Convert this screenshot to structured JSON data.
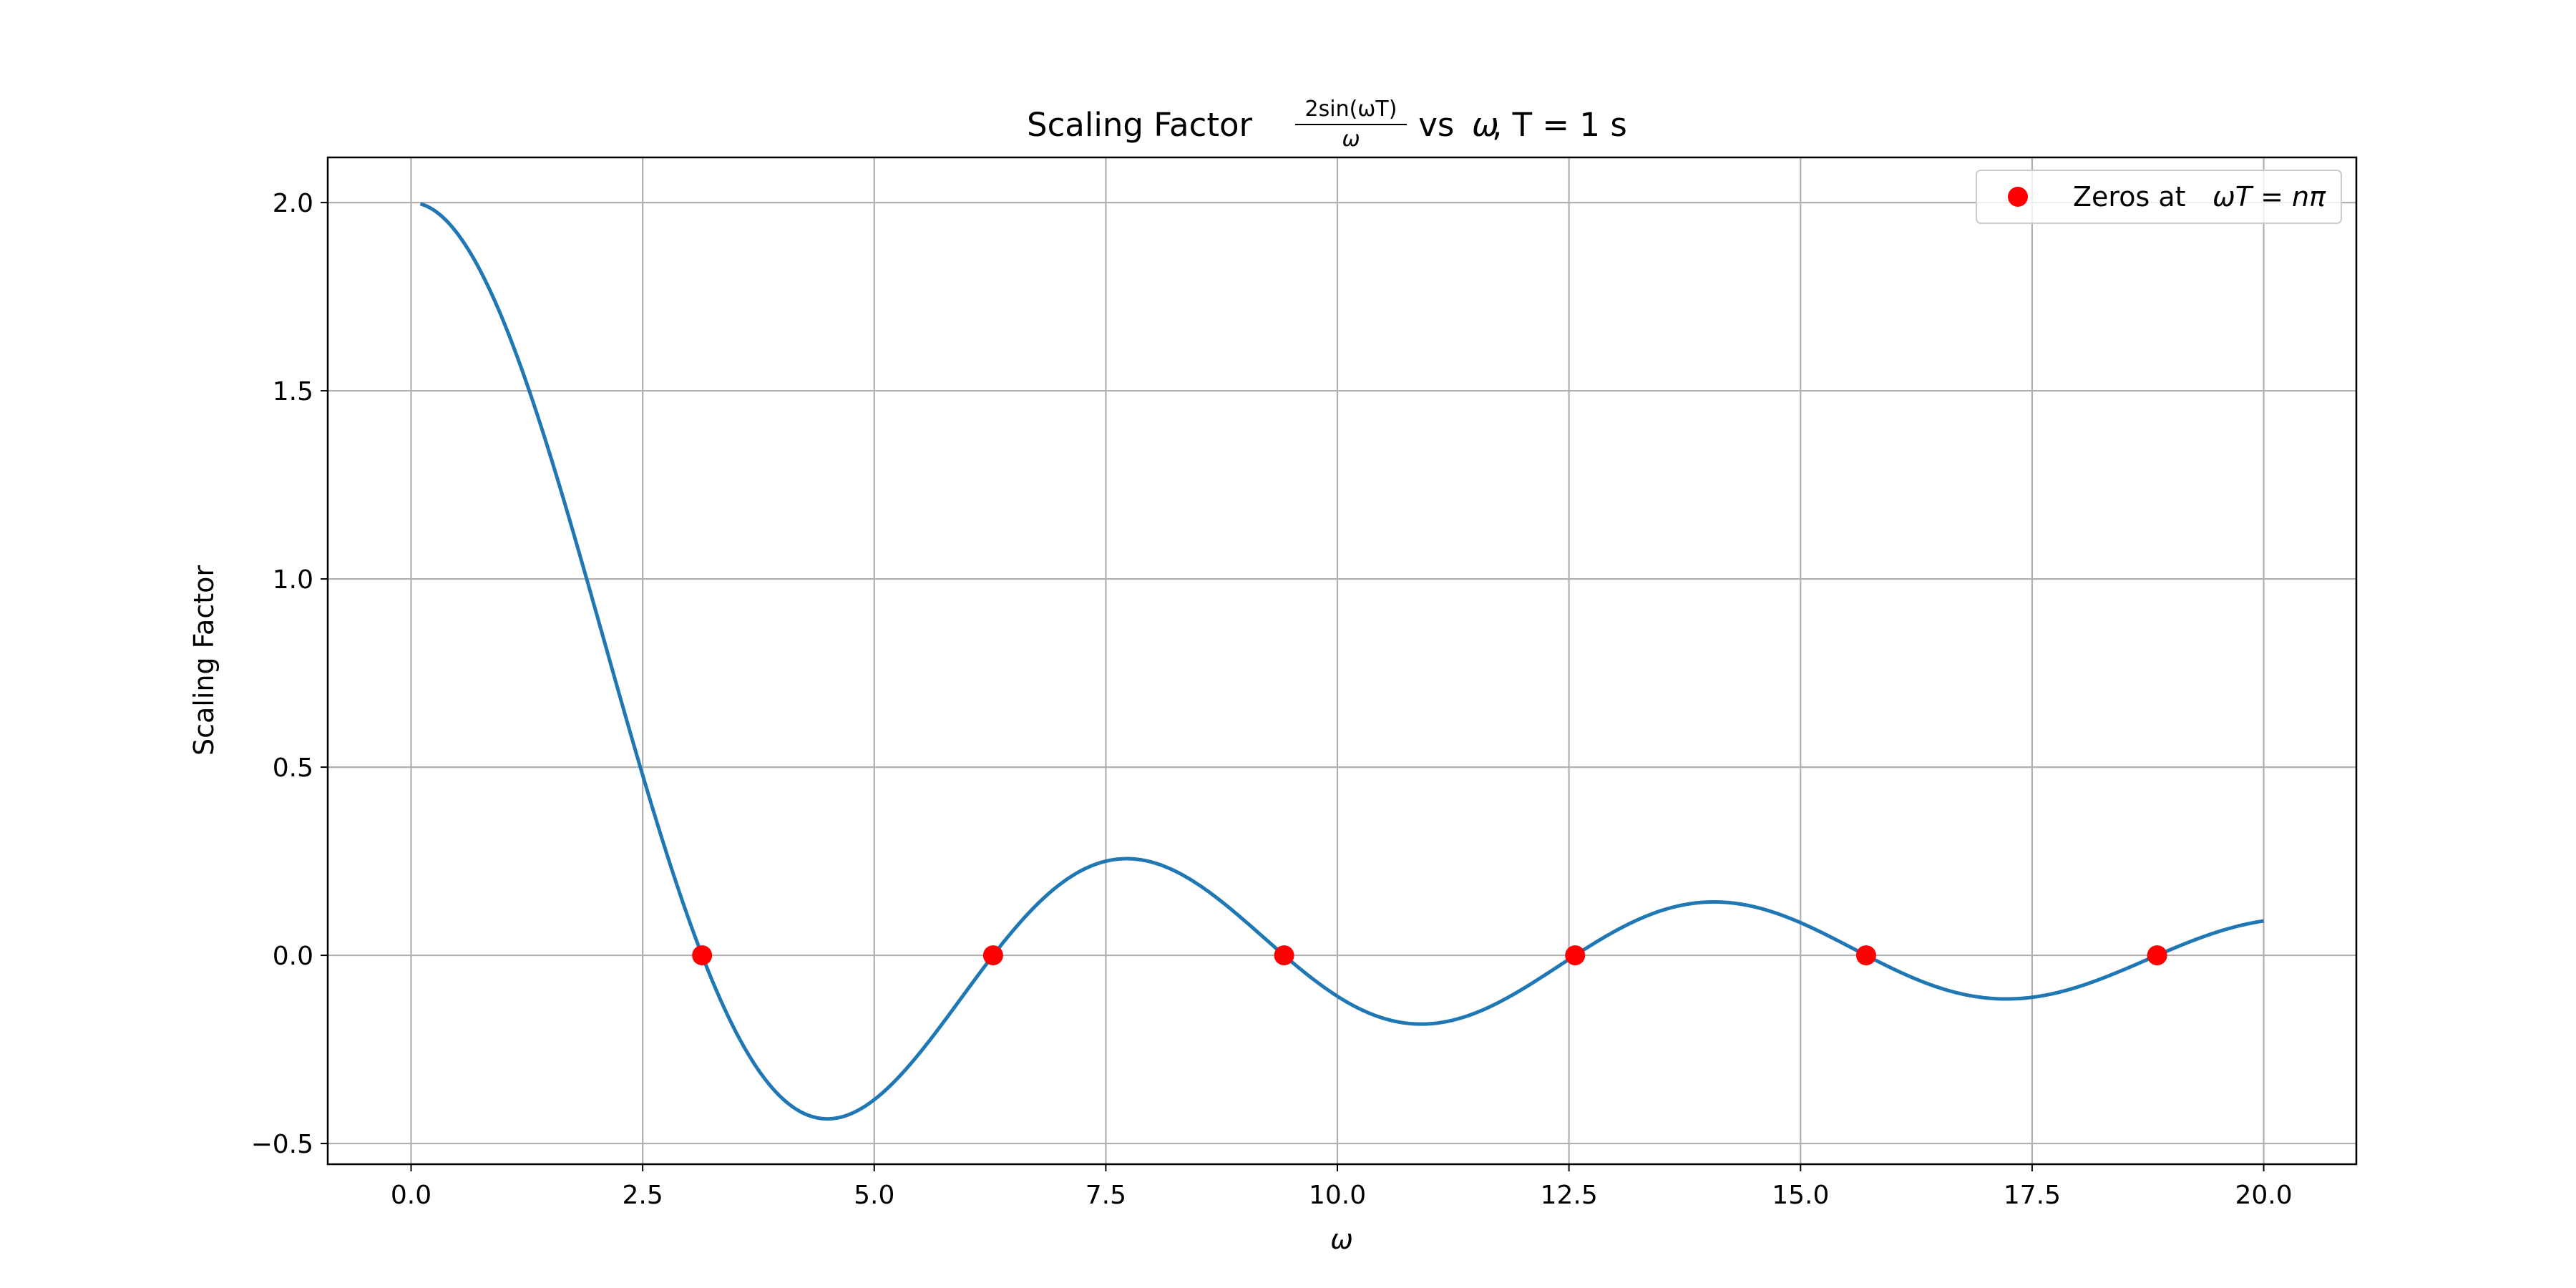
{
  "chart_data": {
    "type": "line",
    "title": {
      "prefix": "Scaling Factor ",
      "fraction_numerator": "2sin(ωT)",
      "fraction_denominator": "ω",
      "suffix_italic": "ω",
      "suffix": ", T = 1 s",
      "suffix_lead": " vs "
    },
    "xlabel": "ω",
    "ylabel": "Scaling Factor",
    "xlim": [
      -0.9,
      21.0
    ],
    "ylim": [
      -0.555,
      2.12
    ],
    "x_ticks": [
      0.0,
      2.5,
      5.0,
      7.5,
      10.0,
      12.5,
      15.0,
      17.5,
      20.0
    ],
    "x_tick_labels": [
      "0.0",
      "2.5",
      "5.0",
      "7.5",
      "10.0",
      "12.5",
      "15.0",
      "17.5",
      "20.0"
    ],
    "y_ticks": [
      -0.5,
      0.0,
      0.5,
      1.0,
      1.5,
      2.0
    ],
    "y_tick_labels": [
      "−0.5",
      "0.0",
      "0.5",
      "1.0",
      "1.5",
      "2.0"
    ],
    "grid": true,
    "legend_position": "top-right",
    "series": [
      {
        "kind": "curve",
        "function": "2*sin(omega*T)/omega",
        "T": 1,
        "x_range": [
          0.1,
          20.0
        ],
        "color": "#1f77b4"
      },
      {
        "kind": "points",
        "name_prefix": "Zeros at ",
        "name_math": "ωT = nπ",
        "color": "#ff0000",
        "x": [
          3.1416,
          6.2832,
          9.4248,
          12.5664,
          15.708,
          18.8496
        ],
        "y": [
          0,
          0,
          0,
          0,
          0,
          0
        ]
      }
    ]
  }
}
